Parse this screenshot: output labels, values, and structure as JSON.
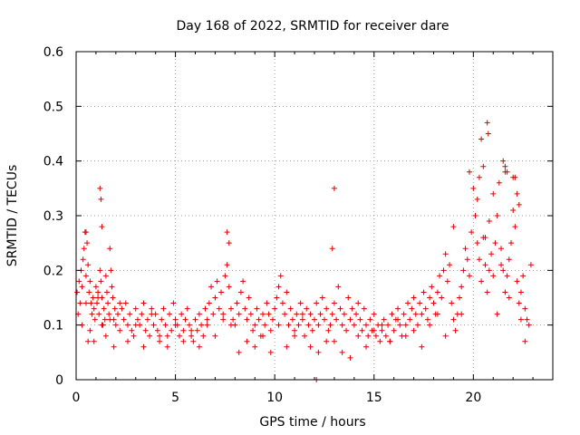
{
  "chart_data": {
    "type": "scatter",
    "title": "Day 168 of 2022, SRMTID for receiver dare",
    "xlabel": "GPS time / hours",
    "ylabel": "SRMTID / TECUs",
    "xlim": [
      0,
      24
    ],
    "ylim": [
      0,
      0.6
    ],
    "x_ticks": [
      0,
      5,
      10,
      15,
      20
    ],
    "x_tick_labels": [
      "0",
      "5",
      "10",
      "15",
      "20"
    ],
    "y_ticks": [
      0,
      0.1,
      0.2,
      0.3,
      0.4,
      0.5,
      0.6
    ],
    "y_tick_labels": [
      "0",
      "0.1",
      "0.2",
      "0.3",
      "0.4",
      "0.5",
      "0.6"
    ],
    "grid": true,
    "marker": "plus",
    "color": "#e00000",
    "series": [
      {
        "name": "SRMTID",
        "x": [
          0.05,
          0.1,
          0.15,
          0.2,
          0.25,
          0.3,
          0.35,
          0.4,
          0.45,
          0.5,
          0.55,
          0.6,
          0.65,
          0.7,
          0.75,
          0.8,
          0.85,
          0.9,
          0.95,
          1.0,
          1.05,
          1.1,
          1.15,
          1.2,
          1.25,
          1.3,
          1.35,
          1.4,
          1.45,
          1.5,
          1.55,
          1.6,
          1.65,
          1.7,
          1.75,
          1.8,
          1.85,
          1.9,
          1.95,
          2.0,
          2.1,
          2.2,
          2.3,
          2.4,
          2.5,
          2.6,
          2.7,
          2.8,
          2.9,
          3.0,
          3.1,
          3.2,
          3.3,
          3.4,
          3.5,
          3.6,
          3.7,
          3.8,
          3.9,
          4.0,
          4.1,
          4.2,
          4.3,
          4.4,
          4.5,
          4.6,
          4.7,
          4.8,
          4.9,
          5.0,
          5.1,
          5.2,
          5.3,
          5.4,
          5.5,
          5.6,
          5.7,
          5.8,
          5.9,
          6.0,
          6.1,
          6.2,
          6.3,
          6.4,
          6.5,
          6.6,
          6.7,
          6.8,
          6.9,
          7.0,
          7.1,
          7.2,
          7.3,
          7.4,
          7.5,
          7.6,
          7.7,
          7.8,
          7.9,
          8.0,
          8.1,
          8.2,
          8.3,
          8.4,
          8.5,
          8.6,
          8.7,
          8.8,
          8.9,
          9.0,
          9.1,
          9.2,
          9.3,
          9.4,
          9.5,
          9.6,
          9.7,
          9.8,
          9.9,
          10.0,
          10.1,
          10.2,
          10.3,
          10.4,
          10.5,
          10.6,
          10.7,
          10.8,
          10.9,
          11.0,
          11.1,
          11.2,
          11.3,
          11.4,
          11.5,
          11.6,
          11.7,
          11.8,
          11.9,
          12.0,
          12.1,
          12.2,
          12.3,
          12.4,
          12.5,
          12.6,
          12.7,
          12.8,
          12.9,
          13.0,
          13.1,
          13.2,
          13.3,
          13.4,
          13.5,
          13.6,
          13.7,
          13.8,
          13.9,
          14.0,
          14.1,
          14.2,
          14.3,
          14.4,
          14.5,
          14.6,
          14.7,
          14.8,
          14.9,
          15.0,
          15.1,
          15.2,
          15.3,
          15.4,
          15.5,
          15.6,
          15.7,
          15.8,
          15.9,
          16.0,
          16.1,
          16.2,
          16.3,
          16.4,
          16.5,
          16.6,
          16.7,
          16.8,
          16.9,
          17.0,
          17.1,
          17.2,
          17.3,
          17.4,
          17.5,
          17.6,
          17.7,
          17.8,
          17.9,
          18.0,
          18.1,
          18.2,
          18.3,
          18.4,
          18.5,
          18.6,
          18.7,
          18.8,
          18.9,
          19.0,
          19.1,
          19.2,
          19.3,
          19.4,
          19.5,
          19.6,
          19.7,
          19.8,
          19.9,
          20.0,
          20.1,
          20.2,
          20.3,
          20.4,
          20.5,
          20.6,
          20.7,
          20.8,
          20.9,
          21.0,
          21.1,
          21.2,
          21.3,
          21.4,
          21.5,
          21.6,
          21.7,
          21.8,
          21.9,
          22.0,
          22.1,
          22.2,
          22.3,
          22.4,
          22.5,
          22.6,
          22.7,
          22.8,
          22.9,
          0.3,
          0.5,
          0.7,
          0.9,
          1.1,
          1.3,
          1.5,
          1.7,
          1.9,
          2.2,
          2.6,
          3.0,
          3.4,
          3.8,
          4.2,
          4.6,
          5.0,
          5.4,
          5.8,
          6.2,
          6.6,
          7.0,
          7.4,
          7.8,
          8.2,
          8.6,
          9.0,
          9.4,
          9.8,
          10.2,
          10.6,
          11.0,
          11.4,
          11.8,
          12.2,
          12.6,
          13.0,
          13.4,
          13.8,
          14.2,
          14.6,
          15.0,
          15.4,
          15.8,
          16.2,
          16.6,
          17.0,
          17.4,
          17.8,
          18.2,
          18.6,
          19.0,
          19.4,
          19.8,
          20.2,
          20.4,
          20.6,
          20.8,
          21.0,
          21.2,
          21.4,
          21.6,
          21.8,
          22.0,
          22.2,
          22.4,
          22.6,
          1.2,
          1.25,
          1.3,
          7.6,
          7.7,
          12.9,
          13.0,
          20.3,
          20.5,
          20.7,
          20.75,
          21.5,
          21.6,
          21.7,
          22.1,
          22.3,
          0.5,
          0.6,
          12.1
        ],
        "y": [
          0.16,
          0.12,
          0.18,
          0.14,
          0.2,
          0.17,
          0.22,
          0.24,
          0.27,
          0.19,
          0.25,
          0.21,
          0.16,
          0.18,
          0.14,
          0.12,
          0.15,
          0.13,
          0.11,
          0.17,
          0.14,
          0.16,
          0.12,
          0.2,
          0.18,
          0.15,
          0.1,
          0.13,
          0.11,
          0.19,
          0.16,
          0.14,
          0.12,
          0.24,
          0.2,
          0.17,
          0.15,
          0.11,
          0.13,
          0.1,
          0.12,
          0.09,
          0.13,
          0.11,
          0.14,
          0.1,
          0.12,
          0.09,
          0.08,
          0.13,
          0.11,
          0.1,
          0.12,
          0.14,
          0.09,
          0.11,
          0.08,
          0.13,
          0.1,
          0.12,
          0.09,
          0.07,
          0.11,
          0.13,
          0.1,
          0.08,
          0.12,
          0.09,
          0.14,
          0.11,
          0.1,
          0.08,
          0.12,
          0.09,
          0.11,
          0.13,
          0.1,
          0.08,
          0.07,
          0.11,
          0.09,
          0.12,
          0.1,
          0.08,
          0.13,
          0.11,
          0.14,
          0.17,
          0.12,
          0.15,
          0.18,
          0.13,
          0.16,
          0.12,
          0.19,
          0.21,
          0.17,
          0.13,
          0.11,
          0.1,
          0.14,
          0.12,
          0.16,
          0.18,
          0.13,
          0.11,
          0.15,
          0.12,
          0.09,
          0.1,
          0.13,
          0.11,
          0.08,
          0.12,
          0.1,
          0.14,
          0.12,
          0.09,
          0.11,
          0.13,
          0.15,
          0.17,
          0.19,
          0.14,
          0.12,
          0.16,
          0.1,
          0.13,
          0.11,
          0.09,
          0.12,
          0.1,
          0.14,
          0.11,
          0.08,
          0.13,
          0.1,
          0.12,
          0.09,
          0.11,
          0.14,
          0.1,
          0.12,
          0.15,
          0.11,
          0.13,
          0.09,
          0.1,
          0.12,
          0.14,
          0.11,
          0.17,
          0.13,
          0.1,
          0.12,
          0.09,
          0.15,
          0.11,
          0.13,
          0.1,
          0.12,
          0.14,
          0.11,
          0.09,
          0.13,
          0.1,
          0.08,
          0.11,
          0.09,
          0.12,
          0.08,
          0.1,
          0.07,
          0.09,
          0.11,
          0.08,
          0.1,
          0.07,
          0.12,
          0.09,
          0.11,
          0.13,
          0.1,
          0.08,
          0.12,
          0.1,
          0.14,
          0.11,
          0.13,
          0.15,
          0.12,
          0.1,
          0.14,
          0.12,
          0.16,
          0.13,
          0.11,
          0.15,
          0.17,
          0.14,
          0.12,
          0.16,
          0.19,
          0.15,
          0.2,
          0.23,
          0.18,
          0.21,
          0.14,
          0.11,
          0.09,
          0.12,
          0.15,
          0.17,
          0.2,
          0.24,
          0.22,
          0.19,
          0.27,
          0.35,
          0.3,
          0.25,
          0.22,
          0.18,
          0.26,
          0.21,
          0.16,
          0.2,
          0.23,
          0.19,
          0.25,
          0.3,
          0.36,
          0.24,
          0.2,
          0.16,
          0.19,
          0.22,
          0.25,
          0.31,
          0.28,
          0.18,
          0.14,
          0.16,
          0.19,
          0.13,
          0.11,
          0.1,
          0.21,
          0.1,
          0.14,
          0.09,
          0.07,
          0.15,
          0.1,
          0.08,
          0.11,
          0.06,
          0.14,
          0.07,
          0.1,
          0.06,
          0.12,
          0.08,
          0.06,
          0.1,
          0.07,
          0.09,
          0.06,
          0.1,
          0.08,
          0.11,
          0.1,
          0.05,
          0.07,
          0.06,
          0.08,
          0.05,
          0.1,
          0.06,
          0.08,
          0.12,
          0.06,
          0.05,
          0.07,
          0.07,
          0.05,
          0.04,
          0.08,
          0.06,
          0.09,
          0.1,
          0.07,
          0.11,
          0.08,
          0.09,
          0.06,
          0.1,
          0.12,
          0.08,
          0.28,
          0.12,
          0.38,
          0.33,
          0.44,
          0.26,
          0.29,
          0.34,
          0.12,
          0.21,
          0.38,
          0.15,
          0.37,
          0.34,
          0.11,
          0.07,
          0.35,
          0.33,
          0.28,
          0.27,
          0.25,
          0.24,
          0.35,
          0.37,
          0.39,
          0.47,
          0.45,
          0.4,
          0.39,
          0.38,
          0.37,
          0.32,
          0.27,
          0.07,
          0.0
        ]
      }
    ]
  }
}
